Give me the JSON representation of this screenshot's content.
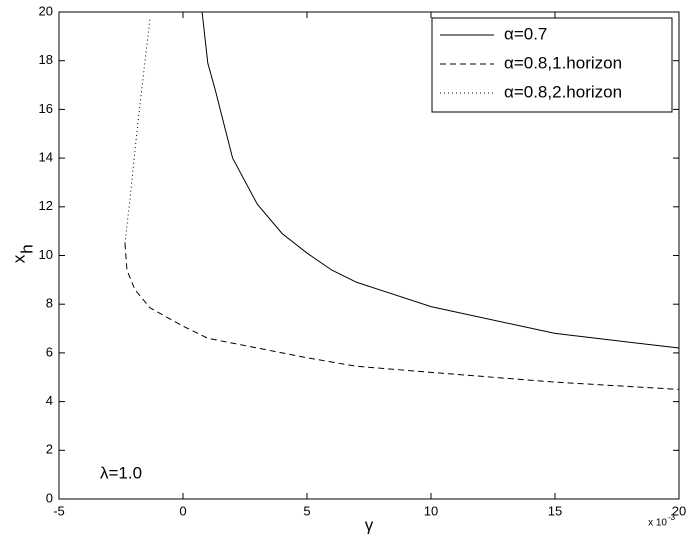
{
  "chart_data": {
    "type": "line",
    "xlabel": "γ",
    "ylabel": {
      "text": "x",
      "subscript": "h"
    },
    "x_multiplier": {
      "base": "x 10",
      "exponent": "-3"
    },
    "annotation": "λ=1.0",
    "xlim": [
      -5,
      20
    ],
    "xticks": [
      -5,
      0,
      5,
      10,
      15,
      20
    ],
    "ylim": [
      0,
      20
    ],
    "yticks": [
      0,
      2,
      4,
      6,
      8,
      10,
      12,
      14,
      16,
      18,
      20
    ],
    "legend": "top-right",
    "series": [
      {
        "name": "α=0.7",
        "color": "#000000",
        "style": "solid",
        "x": [
          0.77,
          1.0,
          1.3,
          2.0,
          3.0,
          4.0,
          5.0,
          6.0,
          7.0,
          10.0,
          15.0,
          20.0
        ],
        "values": [
          20,
          17.9,
          16.8,
          14.0,
          12.1,
          10.9,
          10.1,
          9.4,
          8.9,
          7.9,
          6.8,
          6.2
        ]
      },
      {
        "name": "α=0.8,1.horizon",
        "color": "#000000",
        "style": "dashed",
        "x": [
          -2.34,
          -2.26,
          -1.94,
          -1.33,
          0,
          1,
          3,
          5,
          7,
          10,
          15,
          20
        ],
        "values": [
          10.5,
          9.4,
          8.6,
          7.85,
          7.1,
          6.6,
          6.2,
          5.8,
          5.45,
          5.2,
          4.8,
          4.5
        ]
      },
      {
        "name": "α=0.8,2.horizon",
        "color": "#000000",
        "style": "dotted",
        "x": [
          -2.34,
          -2.14,
          -1.85,
          -1.53,
          -1.33
        ],
        "values": [
          10.5,
          12.3,
          15.15,
          18.0,
          19.75
        ]
      }
    ]
  }
}
